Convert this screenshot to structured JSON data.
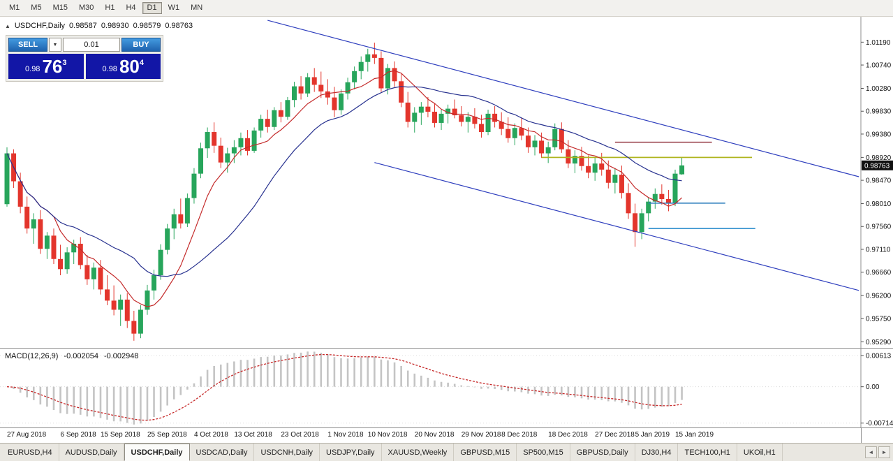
{
  "toolbar": {
    "timeframes": [
      "M1",
      "M5",
      "M15",
      "M30",
      "H1",
      "H4",
      "D1",
      "W1",
      "MN"
    ],
    "active": "D1"
  },
  "ohlc_header": {
    "symbol": "USDCHF,Daily",
    "open": "0.98587",
    "high": "0.98930",
    "low": "0.98579",
    "close": "0.98763"
  },
  "trade_panel": {
    "toggle_icon": "▲",
    "dropdown_icon": "▼",
    "sell_label": "SELL",
    "buy_label": "BUY",
    "volume": "0.01",
    "sell_price": {
      "small": "0.98",
      "big": "76",
      "sup": "3"
    },
    "buy_price": {
      "small": "0.98",
      "big": "80",
      "sup": "4"
    }
  },
  "tabs": {
    "items": [
      "EURUSD,H4",
      "AUDUSD,Daily",
      "USDCHF,Daily",
      "USDCAD,Daily",
      "USDCNH,Daily",
      "USDJPY,Daily",
      "XAUUSD,Weekly",
      "GBPUSD,M15",
      "SP500,M15",
      "GBPUSD,Daily",
      "DJ30,H4",
      "TECH100,H1",
      "UKOil,H1"
    ],
    "active": "USDCHF,Daily",
    "scroll_left": "◄",
    "scroll_right": "►"
  },
  "chart_data": [
    {
      "type": "candlestick",
      "title": "USDCHF,Daily",
      "ylim": [
        0.9517,
        1.0169
      ],
      "y_axis_labels": [
        "1.01190",
        "1.00740",
        "1.00280",
        "0.99830",
        "0.99380",
        "0.98920",
        "0.98470",
        "0.98010",
        "0.97560",
        "0.97110",
        "0.96660",
        "0.96200",
        "0.95750",
        "0.95290"
      ],
      "current_price_label": "0.98763",
      "x_axis_labels": [
        {
          "index": 0,
          "label": "27 Aug 2018"
        },
        {
          "index": 8,
          "label": "6 Sep 2018"
        },
        {
          "index": 14,
          "label": "15 Sep 2018"
        },
        {
          "index": 21,
          "label": "25 Sep 2018"
        },
        {
          "index": 28,
          "label": "4 Oct 2018"
        },
        {
          "index": 34,
          "label": "13 Oct 2018"
        },
        {
          "index": 41,
          "label": "23 Oct 2018"
        },
        {
          "index": 48,
          "label": "1 Nov 2018"
        },
        {
          "index": 54,
          "label": "10 Nov 2018"
        },
        {
          "index": 61,
          "label": "20 Nov 2018"
        },
        {
          "index": 68,
          "label": "29 Nov 2018"
        },
        {
          "index": 74,
          "label": "8 Dec 2018"
        },
        {
          "index": 81,
          "label": "18 Dec 2018"
        },
        {
          "index": 88,
          "label": "27 Dec 2018"
        },
        {
          "index": 94,
          "label": "5 Jan 2019"
        },
        {
          "index": 100,
          "label": "15 Jan 2019"
        }
      ],
      "colors": {
        "up": "#27A55B",
        "down": "#E3352C",
        "axis_text": "#111111",
        "axis_line": "#8c8c8c",
        "badge_bg": "#111111",
        "badge_text": "#ffffff"
      },
      "moving_averages": [
        {
          "period": 8,
          "color": "#C42B2B"
        },
        {
          "period": 20,
          "color": "#27318F"
        }
      ],
      "trendlines": [
        {
          "name": "channel-upper",
          "x1": 39,
          "p1": 1.0162,
          "x2": 127.5,
          "p2": 0.9854,
          "color": "#2F3FBE"
        },
        {
          "name": "channel-lower",
          "x1": 55,
          "p1": 0.9882,
          "x2": 127.5,
          "p2": 0.963,
          "color": "#2F3FBE"
        }
      ],
      "hlines": [
        {
          "name": "resistance-upper",
          "price": 0.9922,
          "x1": 91,
          "x2": 105.5,
          "color": "#8E2A35",
          "w": 1.3
        },
        {
          "name": "resistance-yellow",
          "price": 0.9892,
          "x1": 80,
          "x2": 111.5,
          "color": "#AFB41E",
          "w": 1.7
        },
        {
          "name": "support-1",
          "price": 0.9802,
          "x1": 96,
          "x2": 107.5,
          "color": "#2E7FBE",
          "w": 1.7
        },
        {
          "name": "support-2",
          "price": 0.9752,
          "x1": 96,
          "x2": 112,
          "color": "#3E97D1",
          "w": 1.7
        }
      ],
      "candles": [
        [
          0.98,
          0.9912,
          0.9795,
          0.99
        ],
        [
          0.99,
          0.9908,
          0.9832,
          0.9845
        ],
        [
          0.9845,
          0.9862,
          0.9782,
          0.9795
        ],
        [
          0.9795,
          0.9815,
          0.9742,
          0.9752
        ],
        [
          0.9752,
          0.9782,
          0.9722,
          0.977
        ],
        [
          0.977,
          0.9788,
          0.9702,
          0.9712
        ],
        [
          0.9712,
          0.9745,
          0.9692,
          0.9738
        ],
        [
          0.9738,
          0.9752,
          0.9682,
          0.9692
        ],
        [
          0.9692,
          0.972,
          0.966,
          0.9672
        ],
        [
          0.9672,
          0.9715,
          0.9663,
          0.9705
        ],
        [
          0.9705,
          0.973,
          0.9682,
          0.9722
        ],
        [
          0.9722,
          0.9735,
          0.9672,
          0.968
        ],
        [
          0.968,
          0.97,
          0.9641,
          0.9652
        ],
        [
          0.9652,
          0.9685,
          0.9632,
          0.9675
        ],
        [
          0.9675,
          0.969,
          0.9622,
          0.9632
        ],
        [
          0.9632,
          0.966,
          0.9601,
          0.961
        ],
        [
          0.961,
          0.964,
          0.9581,
          0.9592
        ],
        [
          0.9592,
          0.9622,
          0.956,
          0.9612
        ],
        [
          0.9612,
          0.9625,
          0.9556,
          0.957
        ],
        [
          0.957,
          0.959,
          0.9531,
          0.9545
        ],
        [
          0.9545,
          0.9601,
          0.9536,
          0.9592
        ],
        [
          0.9592,
          0.9641,
          0.9582,
          0.963
        ],
        [
          0.963,
          0.9671,
          0.9612,
          0.966
        ],
        [
          0.966,
          0.9721,
          0.9651,
          0.971
        ],
        [
          0.971,
          0.9761,
          0.9701,
          0.9752
        ],
        [
          0.9752,
          0.9791,
          0.9731,
          0.978
        ],
        [
          0.978,
          0.9811,
          0.9752,
          0.9762
        ],
        [
          0.9762,
          0.9821,
          0.9755,
          0.9812
        ],
        [
          0.9812,
          0.9871,
          0.9801,
          0.986
        ],
        [
          0.986,
          0.9921,
          0.9851,
          0.991
        ],
        [
          0.991,
          0.9951,
          0.9891,
          0.9942
        ],
        [
          0.9942,
          0.9961,
          0.9901,
          0.9915
        ],
        [
          0.9915,
          0.9931,
          0.9871,
          0.9882
        ],
        [
          0.9882,
          0.9911,
          0.9862,
          0.99
        ],
        [
          0.99,
          0.9926,
          0.9881,
          0.9912
        ],
        [
          0.9912,
          0.9941,
          0.9896,
          0.993
        ],
        [
          0.993,
          0.9946,
          0.9896,
          0.9905
        ],
        [
          0.9905,
          0.9951,
          0.9901,
          0.9945
        ],
        [
          0.9945,
          0.9976,
          0.9931,
          0.9968
        ],
        [
          0.9968,
          0.9986,
          0.9941,
          0.9952
        ],
        [
          0.9952,
          0.9991,
          0.9946,
          0.9985
        ],
        [
          0.9985,
          1.0001,
          0.9961,
          0.9972
        ],
        [
          0.9972,
          1.0011,
          0.9966,
          1.0005
        ],
        [
          1.0005,
          1.0041,
          0.9991,
          1.0032
        ],
        [
          1.0032,
          1.0052,
          1.0006,
          1.0018
        ],
        [
          1.0018,
          1.0058,
          1.0011,
          1.005
        ],
        [
          1.005,
          1.0068,
          1.0021,
          1.0035
        ],
        [
          1.0035,
          1.0061,
          1.0009,
          1.0022
        ],
        [
          1.0022,
          1.0046,
          0.9996,
          1.001
        ],
        [
          1.001,
          1.0031,
          0.9971,
          0.9985
        ],
        [
          0.9985,
          1.0026,
          0.9976,
          1.0018
        ],
        [
          1.0018,
          1.0049,
          1.0006,
          1.004
        ],
        [
          1.004,
          1.0071,
          1.0026,
          1.0062
        ],
        [
          1.0062,
          1.0091,
          1.0046,
          1.008
        ],
        [
          1.008,
          1.0106,
          1.0061,
          1.0095
        ],
        [
          1.0095,
          1.0118,
          1.0076,
          1.0088
        ],
        [
          1.0088,
          1.0101,
          1.0021,
          1.0028
        ],
        [
          1.0028,
          1.0076,
          1.0016,
          1.0068
        ],
        [
          1.0068,
          1.0081,
          1.0031,
          1.0042
        ],
        [
          1.0042,
          1.0056,
          0.9991,
          1.0
        ],
        [
          1.0,
          1.0021,
          0.9951,
          0.9962
        ],
        [
          0.9962,
          0.9991,
          0.9941,
          0.998
        ],
        [
          0.998,
          1.0001,
          0.9956,
          0.9992
        ],
        [
          0.9992,
          1.0011,
          0.9971,
          0.9982
        ],
        [
          0.9982,
          0.9999,
          0.9951,
          0.996
        ],
        [
          0.996,
          0.9986,
          0.9946,
          0.9978
        ],
        [
          0.9978,
          0.9996,
          0.9959,
          0.9988
        ],
        [
          0.9988,
          1.0006,
          0.9969,
          0.9975
        ],
        [
          0.9975,
          0.9993,
          0.9953,
          0.9962
        ],
        [
          0.9962,
          0.9981,
          0.9941,
          0.9972
        ],
        [
          0.9972,
          0.9989,
          0.9949,
          0.9958
        ],
        [
          0.9958,
          0.9976,
          0.9931,
          0.9942
        ],
        [
          0.9942,
          0.9986,
          0.9936,
          0.9978
        ],
        [
          0.9978,
          0.9993,
          0.9951,
          0.9962
        ],
        [
          0.9962,
          0.9981,
          0.9936,
          0.9948
        ],
        [
          0.9948,
          0.9971,
          0.9921,
          0.993
        ],
        [
          0.993,
          0.9959,
          0.9916,
          0.995
        ],
        [
          0.995,
          0.9969,
          0.9926,
          0.9935
        ],
        [
          0.9935,
          0.9951,
          0.9901,
          0.9912
        ],
        [
          0.9912,
          0.9936,
          0.9896,
          0.9925
        ],
        [
          0.9925,
          0.9941,
          0.9891,
          0.99
        ],
        [
          0.99,
          0.9923,
          0.9881,
          0.9912
        ],
        [
          0.9912,
          0.9959,
          0.9906,
          0.9948
        ],
        [
          0.9948,
          0.9961,
          0.9901,
          0.9908
        ],
        [
          0.9908,
          0.9926,
          0.9871,
          0.988
        ],
        [
          0.988,
          0.9906,
          0.9861,
          0.9895
        ],
        [
          0.9895,
          0.9913,
          0.9866,
          0.9875
        ],
        [
          0.9875,
          0.9896,
          0.9851,
          0.9862
        ],
        [
          0.9862,
          0.9891,
          0.9846,
          0.988
        ],
        [
          0.988,
          0.9901,
          0.9856,
          0.9868
        ],
        [
          0.9868,
          0.9886,
          0.9831,
          0.9842
        ],
        [
          0.9842,
          0.9871,
          0.9821,
          0.9858
        ],
        [
          0.9858,
          0.9876,
          0.9811,
          0.9822
        ],
        [
          0.9822,
          0.9841,
          0.9771,
          0.9782
        ],
        [
          0.9782,
          0.9801,
          0.9716,
          0.9745
        ],
        [
          0.9745,
          0.9791,
          0.9731,
          0.9782
        ],
        [
          0.9782,
          0.9813,
          0.9766,
          0.9805
        ],
        [
          0.9805,
          0.9831,
          0.9791,
          0.982
        ],
        [
          0.982,
          0.9839,
          0.9799,
          0.981
        ],
        [
          0.981,
          0.9828,
          0.9786,
          0.9802
        ],
        [
          0.9802,
          0.9868,
          0.9796,
          0.986
        ],
        [
          0.98587,
          0.9893,
          0.98579,
          0.98763
        ]
      ]
    },
    {
      "type": "macd_histogram",
      "label": "MACD(12,26,9)",
      "params": [
        12,
        26,
        9
      ],
      "values_text": {
        "main": "-0.002054",
        "signal": "-0.002948"
      },
      "ylim": [
        -0.008,
        0.0075
      ],
      "y_axis_labels": [
        "0.00613",
        "0.00",
        "-0.00714"
      ],
      "colors": {
        "histogram": "#C4C4C4",
        "signal": "#C62828",
        "grid": "#DCDCDC"
      }
    }
  ]
}
